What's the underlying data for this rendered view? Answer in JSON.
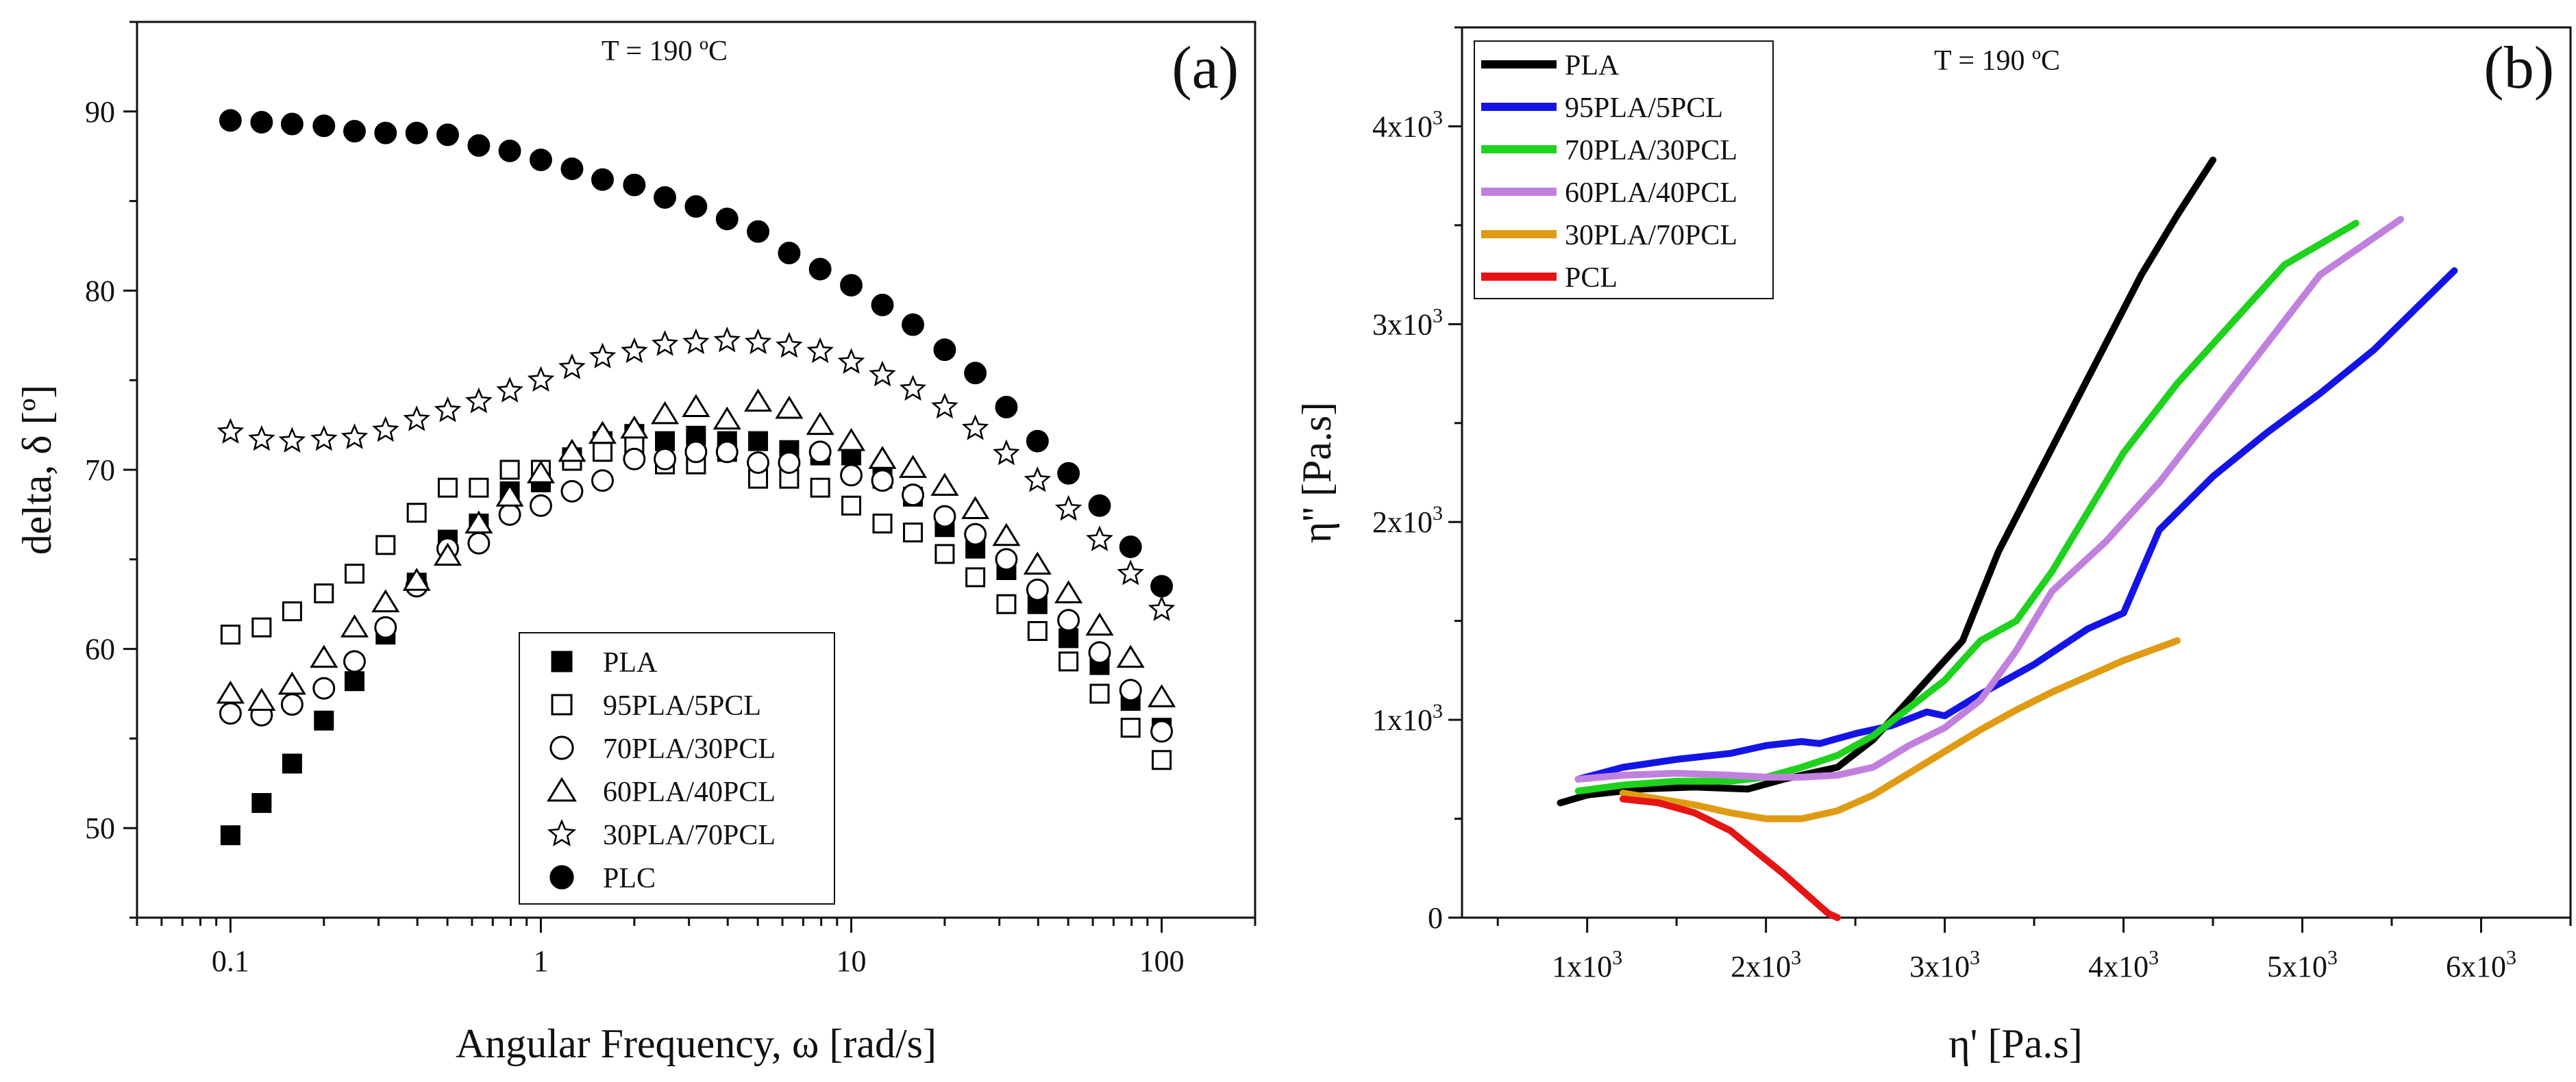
{
  "chart_data": [
    {
      "type": "scatter",
      "panel_label": "(a)",
      "annotation": "T = 190 ºC",
      "xlabel": "Angular Frequency, ω [rad/s]",
      "ylabel": "delta, δ [º]",
      "xscale": "log",
      "xlim": [
        0.05,
        200
      ],
      "ylim": [
        45,
        95
      ],
      "xticks": [
        0.1,
        1,
        10,
        100
      ],
      "xtick_labels": [
        "0.1",
        "1",
        "10",
        "100"
      ],
      "yticks": [
        50,
        60,
        70,
        80,
        90
      ],
      "ytick_labels": [
        "50",
        "60",
        "70",
        "80",
        "90"
      ],
      "legend_position": "bottom-center",
      "x": [
        0.1,
        0.126,
        0.158,
        0.2,
        0.251,
        0.316,
        0.398,
        0.501,
        0.631,
        0.794,
        1,
        1.26,
        1.58,
        2,
        2.51,
        3.16,
        3.98,
        5.01,
        6.31,
        7.94,
        10,
        12.6,
        15.8,
        20,
        25.1,
        31.6,
        39.8,
        50.1,
        63.1,
        79.4,
        100
      ],
      "series": [
        {
          "name": "PLA",
          "marker": "square-filled",
          "values": [
            49.6,
            51.4,
            53.6,
            56.0,
            58.2,
            60.8,
            63.7,
            66.1,
            67.0,
            68.8,
            69.3,
            70.7,
            71.6,
            72.0,
            71.6,
            71.9,
            71.6,
            71.6,
            71.1,
            70.8,
            70.8,
            69.5,
            68.5,
            66.8,
            65.6,
            64.4,
            62.5,
            60.6,
            59.1,
            57.1,
            55.6
          ]
        },
        {
          "name": "95PLA/5PCL",
          "marker": "square-open",
          "values": [
            60.8,
            61.2,
            62.1,
            63.1,
            64.2,
            65.8,
            67.6,
            69.0,
            69.0,
            70.0,
            70.0,
            70.5,
            71.0,
            71.4,
            70.3,
            70.3,
            71.0,
            69.5,
            69.5,
            69.0,
            68.0,
            67.0,
            66.5,
            65.3,
            64.0,
            62.5,
            61.0,
            59.3,
            57.5,
            55.6,
            53.8
          ]
        },
        {
          "name": "70PLA/30PCL",
          "marker": "circle-open",
          "values": [
            56.4,
            56.3,
            56.9,
            57.8,
            59.3,
            61.2,
            63.5,
            65.6,
            65.9,
            67.5,
            68.0,
            68.8,
            69.4,
            70.6,
            70.6,
            71.0,
            71.0,
            70.4,
            70.4,
            71.0,
            69.7,
            69.4,
            68.6,
            67.4,
            66.4,
            65.0,
            63.3,
            61.6,
            59.8,
            57.7,
            55.4
          ]
        },
        {
          "name": "60PLA/40PCL",
          "marker": "triangle-open",
          "values": [
            57.5,
            57.1,
            58.0,
            59.5,
            61.2,
            62.6,
            63.8,
            65.2,
            67.0,
            68.5,
            69.8,
            71.0,
            72.0,
            72.3,
            73.1,
            73.5,
            72.8,
            73.8,
            73.4,
            72.5,
            71.6,
            70.6,
            70.1,
            69.1,
            67.8,
            66.3,
            64.7,
            63.1,
            61.3,
            59.5,
            57.3
          ]
        },
        {
          "name": "30PLA/70PCL",
          "marker": "star-open",
          "values": [
            72.1,
            71.7,
            71.6,
            71.7,
            71.8,
            72.2,
            72.8,
            73.3,
            73.8,
            74.4,
            75.0,
            75.7,
            76.3,
            76.6,
            77.0,
            77.1,
            77.2,
            77.1,
            76.9,
            76.6,
            76.0,
            75.3,
            74.5,
            73.5,
            72.3,
            70.9,
            69.4,
            67.8,
            66.1,
            64.2,
            62.2
          ]
        },
        {
          "name": "PLC",
          "marker": "circle-filled",
          "values": [
            89.5,
            89.4,
            89.3,
            89.2,
            88.9,
            88.8,
            88.8,
            88.7,
            88.1,
            87.8,
            87.3,
            86.8,
            86.2,
            85.9,
            85.2,
            84.7,
            84.0,
            83.3,
            82.1,
            81.2,
            80.3,
            79.2,
            78.1,
            76.7,
            75.4,
            73.5,
            71.6,
            69.8,
            68.0,
            65.7,
            63.5
          ]
        }
      ]
    },
    {
      "type": "line",
      "panel_label": "(b)",
      "annotation": "T = 190 ºC",
      "xlabel": "η' [Pa.s]",
      "ylabel": "η'' [Pa.s]",
      "xlim": [
        300,
        6500
      ],
      "ylim": [
        0,
        4500
      ],
      "xticks": [
        1000,
        2000,
        3000,
        4000,
        5000,
        6000
      ],
      "xtick_base": [
        "1x10",
        "2x10",
        "3x10",
        "4x10",
        "5x10",
        "6x10"
      ],
      "xtick_exp": "3",
      "yticks": [
        0,
        1000,
        2000,
        3000,
        4000
      ],
      "ytick_base": [
        "0",
        "1x10",
        "2x10",
        "3x10",
        "4x10"
      ],
      "ytick_exp": [
        "",
        "3",
        "3",
        "3",
        "3"
      ],
      "legend_position": "top-left",
      "series": [
        {
          "name": "PLA",
          "color": "#000000",
          "x": [
            850,
            1000,
            1300,
            1600,
            1900,
            2100,
            2400,
            2600,
            2800,
            3000,
            3100,
            3300,
            3500,
            3700,
            3900,
            4100,
            4300,
            4500
          ],
          "y": [
            580,
            620,
            650,
            660,
            650,
            700,
            760,
            900,
            1100,
            1300,
            1400,
            1850,
            2200,
            2550,
            2900,
            3250,
            3550,
            3830
          ]
        },
        {
          "name": "95PLA/5PCL",
          "color": "#1414e6",
          "x": [
            950,
            1200,
            1500,
            1800,
            2000,
            2200,
            2300,
            2500,
            2700,
            2900,
            3000,
            3200,
            3500,
            3800,
            4000,
            4200,
            4500,
            4800,
            5100,
            5400,
            5850
          ],
          "y": [
            700,
            760,
            800,
            830,
            870,
            890,
            880,
            930,
            970,
            1040,
            1020,
            1130,
            1280,
            1460,
            1540,
            1960,
            2230,
            2450,
            2650,
            2870,
            3270
          ]
        },
        {
          "name": "70PLA/30PCL",
          "color": "#1ed21e",
          "x": [
            950,
            1200,
            1500,
            1800,
            2000,
            2200,
            2400,
            2600,
            2800,
            3000,
            3200,
            3400,
            3600,
            3800,
            4000,
            4300,
            4600,
            4900,
            5300
          ],
          "y": [
            640,
            670,
            690,
            690,
            710,
            760,
            820,
            920,
            1060,
            1200,
            1400,
            1500,
            1750,
            2050,
            2350,
            2700,
            3000,
            3300,
            3510
          ]
        },
        {
          "name": "60PLA/40PCL",
          "color": "#c081de",
          "x": [
            950,
            1200,
            1500,
            1800,
            2000,
            2200,
            2400,
            2600,
            2800,
            3000,
            3200,
            3400,
            3600,
            3900,
            4200,
            4500,
            4800,
            5100,
            5550
          ],
          "y": [
            700,
            720,
            730,
            720,
            710,
            710,
            720,
            760,
            870,
            960,
            1100,
            1350,
            1650,
            1900,
            2200,
            2550,
            2900,
            3250,
            3530
          ]
        },
        {
          "name": "30PLA/70PCL",
          "color": "#e09b14",
          "x": [
            1200,
            1400,
            1600,
            1800,
            2000,
            2200,
            2400,
            2600,
            2800,
            3000,
            3200,
            3400,
            3600,
            3800,
            4000,
            4300
          ],
          "y": [
            630,
            600,
            570,
            530,
            500,
            500,
            540,
            620,
            730,
            840,
            950,
            1050,
            1140,
            1220,
            1300,
            1400
          ]
        },
        {
          "name": "PCL",
          "color": "#e61414",
          "x": [
            1200,
            1400,
            1600,
            1800,
            1950,
            2100,
            2200,
            2300,
            2350,
            2400
          ],
          "y": [
            600,
            580,
            530,
            440,
            330,
            220,
            140,
            60,
            20,
            0
          ]
        }
      ]
    }
  ]
}
